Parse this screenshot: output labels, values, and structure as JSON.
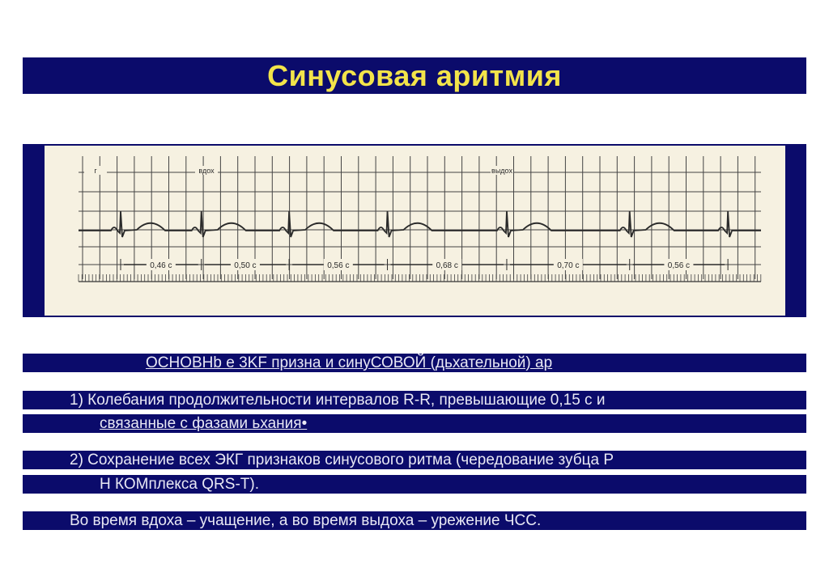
{
  "slide": {
    "title": "Синусовая аритмия",
    "heading": "ОСНОВНЫЕ ЭКГ признаки синусовой (дыхательной) аритмии",
    "heading_rendered": "ОСНОВНb е 3KF признa и синуСОВОЙ (дьхательной) ар",
    "point1_line1": "1)  Колебания продолжительности интервалов R-R, превышающие 0,15 с и",
    "point1_line2": "связанные с фазами  ьхания•",
    "point2_line1": "2)  Сохранение всех ЭКГ признаков синусового ритма (чередование зубца Р",
    "point2_line2": "Н КОМплекса QRS-T).",
    "point3": "Во время вдоха – учащение, а во время выдоха – урежение ЧСС."
  },
  "ecg": {
    "lead_label": "г",
    "inhale_label": "вдох",
    "exhale_label": "выдох",
    "rr_intervals_s": [
      0.46,
      0.5,
      0.56,
      0.68,
      0.7,
      0.56
    ],
    "rr_labels": [
      "0,46 с",
      "0,50 с",
      "0,56 с",
      "0,68 с",
      "0,70 с",
      "0,56 с"
    ]
  },
  "colors": {
    "bar": "#0b0b6b",
    "title": "#f3e44a",
    "paper": "#f6f1e1",
    "ink": "#2a2a2a"
  }
}
